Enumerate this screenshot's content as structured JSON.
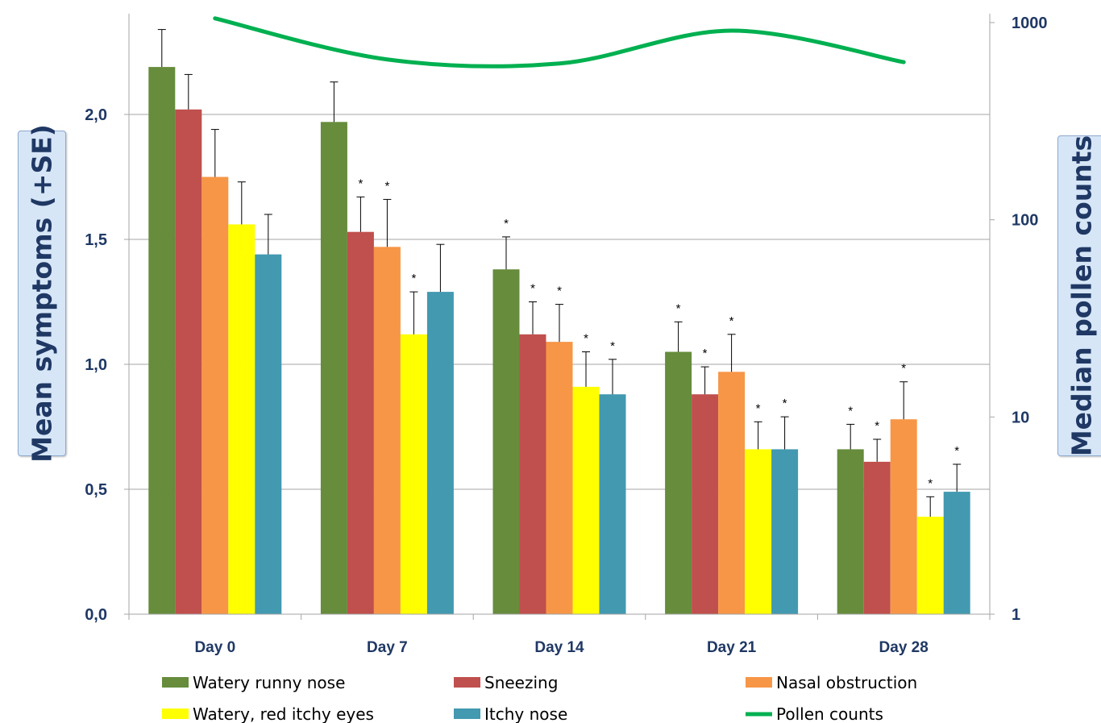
{
  "chart_data": {
    "type": "bar",
    "categories": [
      "Day 0",
      "Day 7",
      "Day 14",
      "Day 21",
      "Day 28"
    ],
    "ylabel": "Mean symptoms (+SE)",
    "y2label": "Median pollen counts",
    "ylim": [
      0,
      2.5
    ],
    "y_ticks": [
      "0,0",
      "0,5",
      "1,0",
      "1,5",
      "2,0"
    ],
    "y2_scale": "log",
    "y2lim": [
      1,
      1000
    ],
    "y2_ticks": [
      "1",
      "10",
      "100",
      "1000"
    ],
    "grid": true,
    "legend_position": "bottom",
    "significance_marker": "*",
    "series": [
      {
        "name": "Watery runny nose",
        "color": "#668c3c",
        "values": [
          2.19,
          1.97,
          1.38,
          1.05,
          0.66
        ],
        "errors": [
          0.15,
          0.16,
          0.13,
          0.12,
          0.1
        ],
        "significant": [
          false,
          false,
          true,
          true,
          true
        ]
      },
      {
        "name": "Sneezing",
        "color": "#c0504d",
        "values": [
          2.02,
          1.53,
          1.12,
          0.88,
          0.61
        ],
        "errors": [
          0.14,
          0.14,
          0.13,
          0.11,
          0.09
        ],
        "significant": [
          false,
          true,
          true,
          true,
          true
        ]
      },
      {
        "name": "Nasal obstruction",
        "color": "#f79646",
        "values": [
          1.75,
          1.47,
          1.09,
          0.97,
          0.78
        ],
        "errors": [
          0.19,
          0.19,
          0.15,
          0.15,
          0.15
        ],
        "significant": [
          false,
          true,
          true,
          true,
          true
        ]
      },
      {
        "name": "Watery, red itchy eyes",
        "color": "#ffff00",
        "values": [
          1.56,
          1.12,
          0.91,
          0.66,
          0.39
        ],
        "errors": [
          0.17,
          0.17,
          0.14,
          0.11,
          0.08
        ],
        "significant": [
          false,
          true,
          true,
          true,
          true
        ]
      },
      {
        "name": "Itchy nose",
        "color": "#4299b0",
        "values": [
          1.44,
          1.29,
          0.88,
          0.66,
          0.49
        ],
        "errors": [
          0.16,
          0.19,
          0.14,
          0.13,
          0.11
        ],
        "significant": [
          false,
          false,
          true,
          true,
          true
        ]
      }
    ],
    "line_series": {
      "name": "Pollen counts",
      "color": "#00b050",
      "axis": "right",
      "values": [
        1050,
        650,
        620,
        910,
        630
      ]
    }
  }
}
